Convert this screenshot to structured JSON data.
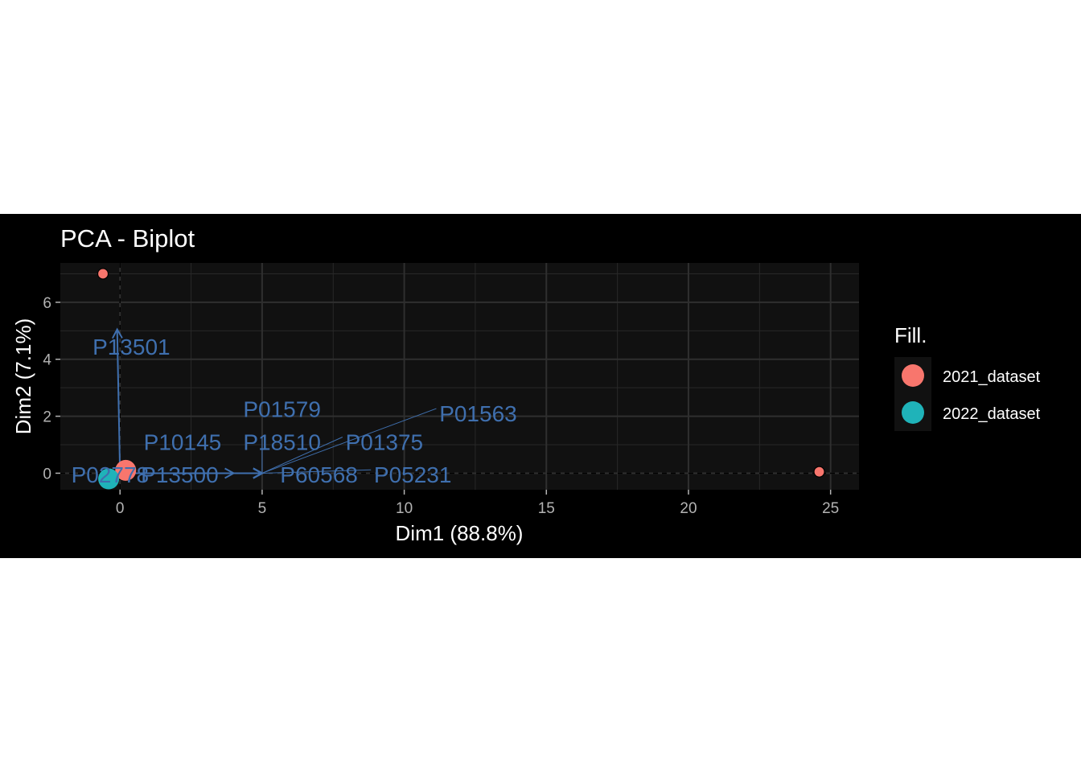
{
  "chart_data": {
    "type": "scatter",
    "title": "PCA - Biplot",
    "xlabel": "Dim1 (88.8%)",
    "ylabel": "Dim2 (7.1%)",
    "xlim": [
      -2.1,
      26.0
    ],
    "ylim": [
      -0.58,
      7.38
    ],
    "x_ticks": [
      0,
      5,
      10,
      15,
      20,
      25
    ],
    "y_ticks": [
      0,
      2,
      4,
      6
    ],
    "grid": true,
    "background": "#111111",
    "legend": {
      "title": "Fill.",
      "position": "right",
      "entries": [
        {
          "label": "2021_dataset",
          "color": "#f8766d"
        },
        {
          "label": "2022_dataset",
          "color": "#1fb3b9"
        }
      ]
    },
    "series": [
      {
        "name": "2021_dataset",
        "color": "#f8766d",
        "points": [
          {
            "x": -0.6,
            "y": 7.0,
            "size": "small"
          },
          {
            "x": 24.6,
            "y": 0.05,
            "size": "small"
          },
          {
            "x": 0.2,
            "y": 0.1,
            "size": "large"
          }
        ]
      },
      {
        "name": "2022_dataset",
        "color": "#1fb3b9",
        "points": [
          {
            "x": -0.4,
            "y": -0.2,
            "size": "large"
          }
        ]
      }
    ],
    "variable_color": "#3f6fae",
    "variables": [
      {
        "name": "P13501",
        "x": -0.1,
        "y": 5.05,
        "label_x": 0.4,
        "label_y": 4.45
      },
      {
        "name": "P01579",
        "x": 5.0,
        "y": 0.0,
        "label_x": 5.7,
        "label_y": 2.25
      },
      {
        "name": "P01563",
        "x": 5.0,
        "y": 0.0,
        "label_x": 12.6,
        "label_y": 2.1
      },
      {
        "name": "P10145",
        "x": 5.0,
        "y": 0.0,
        "label_x": 2.2,
        "label_y": 1.1
      },
      {
        "name": "P18510",
        "x": 5.0,
        "y": 0.0,
        "label_x": 5.7,
        "label_y": 1.1
      },
      {
        "name": "P01375",
        "x": 5.0,
        "y": 0.0,
        "label_x": 9.3,
        "label_y": 1.1
      },
      {
        "name": "P60568",
        "x": 5.0,
        "y": 0.0,
        "label_x": 7.0,
        "label_y": -0.05
      },
      {
        "name": "P05231",
        "x": 5.0,
        "y": 0.0,
        "label_x": 10.3,
        "label_y": -0.05
      },
      {
        "name": "P13500",
        "x": 4.0,
        "y": 0.0,
        "label_x": 2.1,
        "label_y": -0.05
      },
      {
        "name": "P02778",
        "x": 0.2,
        "y": 0.0,
        "label_x": -0.35,
        "label_y": -0.05
      }
    ]
  }
}
